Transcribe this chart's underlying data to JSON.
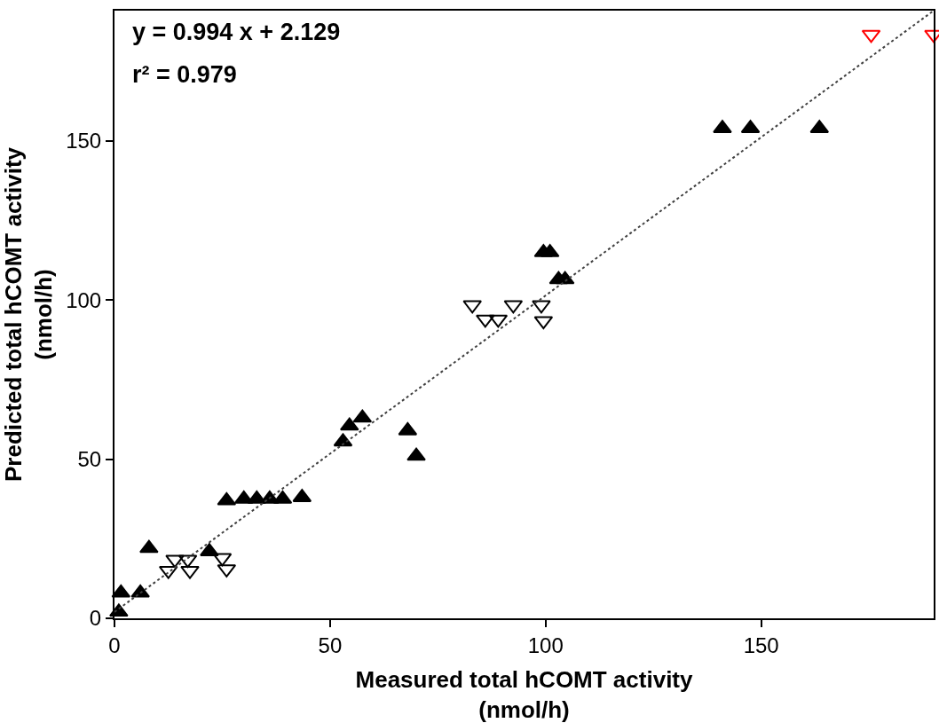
{
  "chart_data": {
    "type": "scatter",
    "xlabel": "Measured total hCOMT activity\n(nmol/h)",
    "ylabel": "Predicted total hCOMT activity\n(nmol/h)",
    "xlim": [
      0,
      190
    ],
    "ylim": [
      0,
      191
    ],
    "xticks": [
      0,
      50,
      100,
      150
    ],
    "yticks": [
      0,
      50,
      100,
      150
    ],
    "grid": false,
    "legend": false,
    "annotations": [
      "y = 0.994 x + 2.129",
      "r² = 0.979"
    ],
    "series": [
      {
        "color": "#000000",
        "marker": "triangle",
        "x": [
          1,
          1.5,
          6,
          8,
          22,
          26,
          30,
          33,
          36,
          39,
          43.5,
          53,
          54.5,
          57.5,
          68,
          70,
          99.5,
          101,
          103,
          104.5,
          141,
          147.5,
          163.5
        ],
        "values": [
          2,
          8,
          8,
          22,
          21,
          37,
          37.5,
          37.5,
          37.5,
          37.5,
          38,
          55.5,
          60.5,
          63,
          59,
          51,
          115,
          115,
          106.5,
          106.5,
          154,
          154,
          154
        ]
      },
      {
        "color": "#000000",
        "marker": "triangle-down",
        "x": [
          14,
          17,
          12.5,
          17.5,
          25,
          26,
          83,
          86,
          89,
          92.5,
          99,
          99.5
        ],
        "values": [
          18.5,
          18.5,
          15,
          15,
          19,
          15.5,
          98.5,
          94,
          94,
          98.5,
          98.5,
          93.5
        ]
      },
      {
        "color": "#ff0000",
        "marker": "triangle-down",
        "x": [
          175.5,
          190
        ],
        "values": [
          183.5,
          183.5
        ]
      },
      {
        "type": "line",
        "color": "#404040",
        "line_style": "dotted",
        "marker": "none",
        "x": [
          0,
          190
        ],
        "values": [
          2,
          191
        ]
      }
    ]
  }
}
